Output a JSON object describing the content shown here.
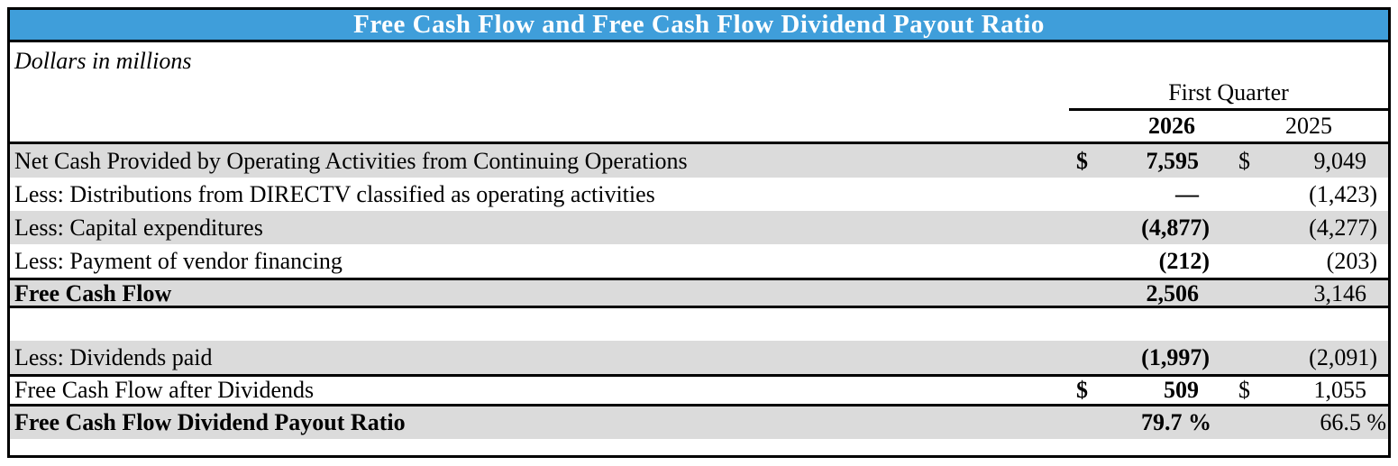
{
  "title": "Free Cash Flow and Free Cash Flow Dividend Payout Ratio",
  "units_note": "Dollars in millions",
  "period_header": "First Quarter",
  "year_columns": [
    "2026",
    "2025"
  ],
  "rows": [
    {
      "label": "Net Cash Provided by Operating Activities from Continuing Operations",
      "cur_2026": "$",
      "val_2026": "7,595",
      "cur_2025": "$",
      "val_2025": "9,049"
    },
    {
      "label": "Less: Distributions from DIRECTV classified as operating activities",
      "cur_2026": "",
      "val_2026": "—",
      "cur_2025": "",
      "val_2025": "(1,423)"
    },
    {
      "label": "Less: Capital expenditures",
      "cur_2026": "",
      "val_2026": "(4,877)",
      "cur_2025": "",
      "val_2025": "(4,277)"
    },
    {
      "label": "Less: Payment of vendor financing",
      "cur_2026": "",
      "val_2026": "(212)",
      "cur_2025": "",
      "val_2025": "(203)"
    },
    {
      "label": "Free Cash Flow",
      "cur_2026": "",
      "val_2026": "2,506",
      "cur_2025": "",
      "val_2025": "3,146"
    },
    {
      "label": "",
      "cur_2026": "",
      "val_2026": "",
      "cur_2025": "",
      "val_2025": ""
    },
    {
      "label": "Less: Dividends paid",
      "cur_2026": "",
      "val_2026": "(1,997)",
      "cur_2025": "",
      "val_2025": "(2,091)"
    },
    {
      "label": "Free Cash Flow after Dividends",
      "cur_2026": "$",
      "val_2026": "509",
      "cur_2025": "$",
      "val_2025": "1,055"
    },
    {
      "label": "Free Cash Flow Dividend Payout Ratio",
      "cur_2026": "",
      "val_2026": "79.7 %",
      "cur_2025": "",
      "val_2025": "66.5 %"
    }
  ],
  "colors": {
    "title_bar_bg": "#3F9EDA",
    "title_text": "#FFFFFF",
    "shaded_row_bg": "#DBDBDB",
    "border": "#000000",
    "text": "#000000"
  }
}
